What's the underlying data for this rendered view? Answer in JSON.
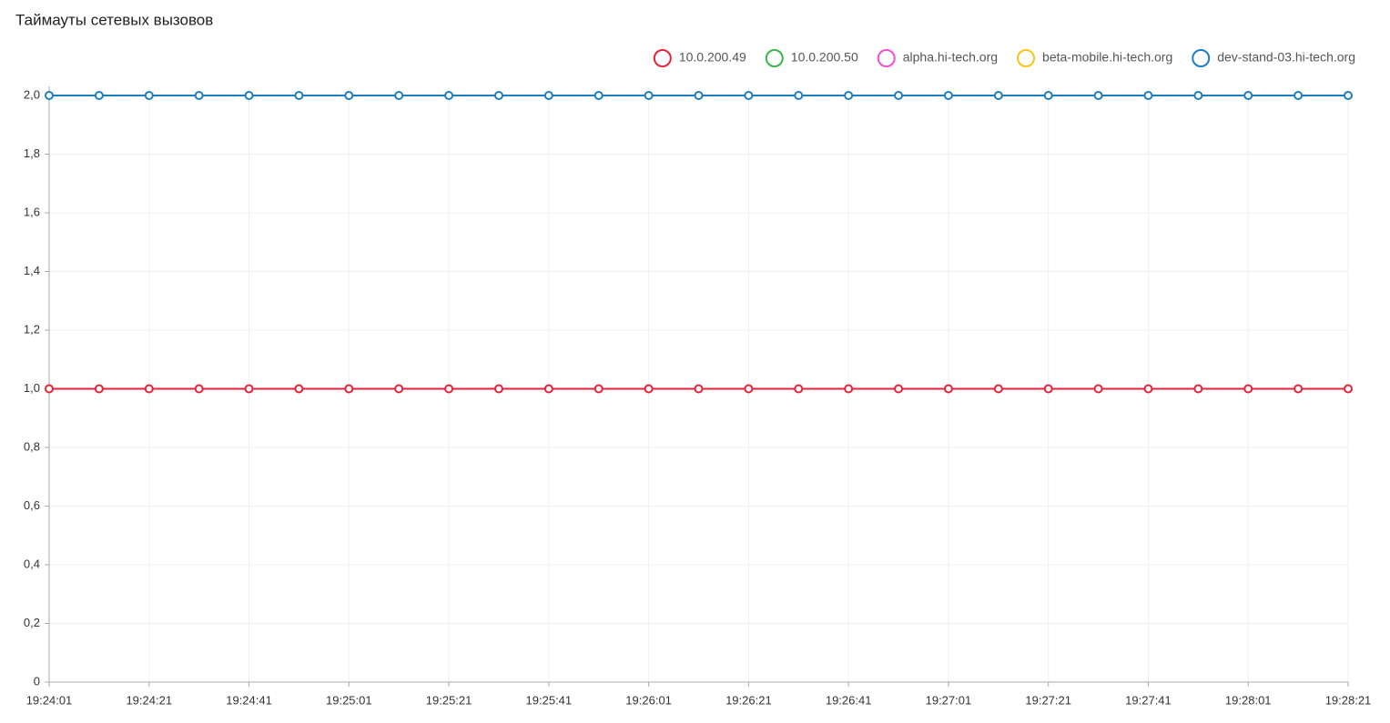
{
  "chart_data": {
    "type": "line",
    "title": "Таймауты сетевых вызовов",
    "categories": [
      "19:24:01",
      null,
      "19:24:21",
      null,
      "19:24:41",
      null,
      "19:25:01",
      null,
      "19:25:21",
      null,
      "19:25:41",
      null,
      "19:26:01",
      null,
      "19:26:21",
      null,
      "19:26:41",
      null,
      "19:27:01",
      null,
      "19:27:21",
      null,
      "19:27:41",
      null,
      "19:28:01",
      null,
      "19:28:21"
    ],
    "series": [
      {
        "name": "10.0.200.49",
        "color": "#e5233b",
        "values": [
          1,
          1,
          1,
          1,
          1,
          1,
          1,
          1,
          1,
          1,
          1,
          1,
          1,
          1,
          1,
          1,
          1,
          1,
          1,
          1,
          1,
          1,
          1,
          1,
          1,
          1,
          1
        ]
      },
      {
        "name": "10.0.200.50",
        "color": "#3cb44b",
        "values": [
          null,
          null,
          null,
          null,
          null,
          null,
          null,
          null,
          null,
          null,
          null,
          null,
          null,
          null,
          null,
          null,
          null,
          null,
          null,
          null,
          null,
          null,
          null,
          null,
          null,
          null,
          null
        ]
      },
      {
        "name": "alpha.hi-tech.org",
        "color": "#f050d8",
        "values": [
          null,
          null,
          null,
          null,
          null,
          null,
          null,
          null,
          null,
          null,
          null,
          null,
          null,
          null,
          null,
          null,
          null,
          null,
          null,
          null,
          null,
          null,
          null,
          null,
          null,
          null,
          null
        ]
      },
      {
        "name": "beta-mobile.hi-tech.org",
        "color": "#f5c518",
        "values": [
          null,
          null,
          null,
          null,
          null,
          null,
          null,
          null,
          null,
          null,
          null,
          null,
          null,
          null,
          null,
          null,
          null,
          null,
          null,
          null,
          null,
          null,
          null,
          null,
          null,
          null,
          null
        ]
      },
      {
        "name": "dev-stand-03.hi-tech.org",
        "color": "#1a7ec4",
        "values": [
          2,
          2,
          2,
          2,
          2,
          2,
          2,
          2,
          2,
          2,
          2,
          2,
          2,
          2,
          2,
          2,
          2,
          2,
          2,
          2,
          2,
          2,
          2,
          2,
          2,
          2,
          2
        ]
      }
    ],
    "ylim": [
      0,
      2
    ],
    "yticks": [
      0,
      {
        "value": 0.2,
        "label": "0,2"
      },
      {
        "value": 0.4,
        "label": "0,4"
      },
      {
        "value": 0.6,
        "label": "0,6"
      },
      {
        "value": 0.8,
        "label": "0,8"
      },
      {
        "value": 1,
        "label": "1,0"
      },
      {
        "value": 1.2,
        "label": "1,2"
      },
      {
        "value": 1.4,
        "label": "1,4"
      },
      {
        "value": 1.6,
        "label": "1,6"
      },
      {
        "value": 1.8,
        "label": "1,8"
      },
      {
        "value": 2,
        "label": "2,0"
      }
    ],
    "grid": true,
    "legend": "top-right"
  }
}
